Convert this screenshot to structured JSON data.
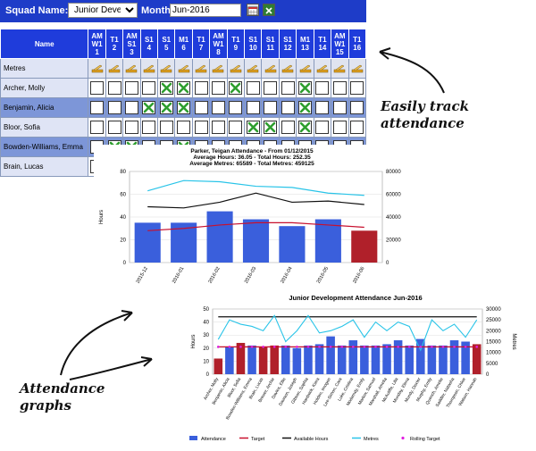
{
  "toolbar": {
    "squad_label": "Squad Name:",
    "squad_value": "Junior Development",
    "month_label": "Month:",
    "month_value": "Jun-2016",
    "calendar_icon": "calendar-icon",
    "export_icon": "excel-export-icon"
  },
  "grid": {
    "name_header": "Name",
    "sessions": [
      {
        "type": "AM",
        "week": "W1",
        "num": "1"
      },
      {
        "type": "T1",
        "week": "",
        "num": "2"
      },
      {
        "type": "AM",
        "week": "S1",
        "num": "3"
      },
      {
        "type": "S1",
        "week": "",
        "num": "4"
      },
      {
        "type": "S1",
        "week": "",
        "num": "5"
      },
      {
        "type": "M1",
        "week": "",
        "num": "6"
      },
      {
        "type": "T1",
        "week": "",
        "num": "7"
      },
      {
        "type": "AM",
        "week": "W1",
        "num": "8"
      },
      {
        "type": "T1",
        "week": "",
        "num": "9"
      },
      {
        "type": "S1",
        "week": "",
        "num": "10"
      },
      {
        "type": "S1",
        "week": "",
        "num": "11"
      },
      {
        "type": "S1",
        "week": "",
        "num": "12"
      },
      {
        "type": "M1",
        "week": "",
        "num": "13"
      },
      {
        "type": "T1",
        "week": "",
        "num": "14"
      },
      {
        "type": "AM",
        "week": "W1",
        "num": "15"
      },
      {
        "type": "T1",
        "week": "",
        "num": "16"
      }
    ],
    "metres_label": "Metres",
    "swimmers": [
      {
        "name": "Archer, Molly",
        "marks": [
          0,
          0,
          0,
          0,
          1,
          1,
          0,
          0,
          1,
          0,
          0,
          0,
          1,
          0,
          0,
          0
        ]
      },
      {
        "name": "Benjamin, Alicia",
        "marks": [
          0,
          0,
          0,
          1,
          1,
          1,
          0,
          0,
          0,
          0,
          0,
          0,
          1,
          0,
          0,
          0
        ]
      },
      {
        "name": "Bloor, Sofia",
        "marks": [
          0,
          0,
          0,
          0,
          0,
          0,
          0,
          0,
          0,
          1,
          1,
          0,
          1,
          0,
          0,
          0
        ]
      },
      {
        "name": "Bowden-Williams, Emma",
        "marks": [
          0,
          1,
          1,
          0,
          0,
          1,
          0,
          0,
          0,
          0,
          0,
          0,
          0,
          0,
          0,
          0
        ]
      },
      {
        "name": "Brain, Lucas",
        "marks": [
          0,
          0,
          0,
          0,
          0,
          0,
          0,
          0,
          0,
          0,
          0,
          0,
          0,
          0,
          0,
          0
        ]
      }
    ]
  },
  "annotations": {
    "track": "Easily track attendance",
    "graphs": "Attendance graphs"
  },
  "chart1_title": {
    "line1": "Parker, Teigan Attendance - From 01/12/2015",
    "line2": "Average Hours: 36.05 - Total Hours: 252.35",
    "line3": "Average Metres: 65589 - Total Metres: 459125"
  },
  "chart2_title": "Junior Development Attendance Jun-2016",
  "colors": {
    "header_blue": "#1f3cdb",
    "bar_blue": "#3a5fdc",
    "bar_red": "#b0202a",
    "metres_cyan": "#29c4e8",
    "target_red": "#c8102e",
    "hours_black": "#111111",
    "rolling_magenta": "#e020e0",
    "check_green": "#2e9e2e"
  },
  "chart_data": [
    {
      "type": "bar",
      "title": "Parker, Teigan Attendance - From 01/12/2015",
      "categories": [
        "2015-12",
        "2016-01",
        "2016-02",
        "2016-03",
        "2016-04",
        "2016-05",
        "2016-06"
      ],
      "series": [
        {
          "name": "",
          "values": [
            35,
            35,
            45,
            38,
            32,
            38,
            28
          ]
        },
        {
          "name": "Metres",
          "axis": "right",
          "values": [
            63000,
            72000,
            71000,
            67000,
            66000,
            61000,
            59000
          ]
        },
        {
          "name": "Available Hours",
          "values": [
            49,
            48,
            53,
            61,
            53,
            54,
            51
          ]
        }
      ],
      "red_line": [
        28,
        30,
        33,
        35,
        35,
        33,
        31
      ],
      "ylabel": "Hours",
      "y2label": "Metres",
      "ylim": [
        0,
        80
      ],
      "y2lim": [
        0,
        80000
      ],
      "yticks": [
        0,
        20,
        40,
        60,
        80
      ],
      "y2ticks": [
        "0",
        "20000",
        "40000",
        "60000",
        "80000"
      ],
      "legend": [
        "Metres",
        "Available Hours"
      ]
    },
    {
      "type": "bar",
      "title": "Junior Development Attendance Jun-2016",
      "categories": [
        "Archer, Molly",
        "Benjamin, Alicia",
        "Bloor, Sofia",
        "Bowden-Williams, Emma",
        "Brain, Lucas",
        "Brewer, Archie",
        "Davies, Ellie",
        "Dawson, Joseph",
        "Gibson, Sophia",
        "Hardwick, Kiera",
        "Holden, Imogen",
        "Lee-Simon, Cara",
        "Luke, Cristina",
        "Moderndy, Emily",
        "Marlow, Samuel",
        "Marshall, Amelia",
        "McAuliffe, Lilia",
        "Munday, Elena",
        "Mundy, Dexter",
        "Murphy, Emily",
        "Quench, Amelie",
        "Saddler, Natasha",
        "Thompson, Chloe",
        "Watson, Hannah"
      ],
      "series": [
        {
          "name": "Attendance",
          "values": [
            12,
            21,
            24,
            22,
            21,
            22,
            22,
            20,
            22,
            23,
            29,
            22,
            26,
            22,
            22,
            23,
            26,
            22,
            27,
            22,
            22,
            26,
            25,
            23
          ]
        },
        {
          "name": "Target",
          "values": [
            21,
            21,
            21,
            21,
            21,
            21,
            21,
            21,
            21,
            21,
            21,
            21,
            21,
            21,
            21,
            21,
            21,
            21,
            21,
            21,
            21,
            21,
            21,
            21
          ]
        },
        {
          "name": "Available Hours",
          "values": [
            44,
            44,
            44,
            44,
            44,
            44,
            44,
            44,
            44,
            44,
            44,
            44,
            44,
            44,
            44,
            44,
            44,
            44,
            44,
            44,
            44,
            44,
            44,
            44
          ]
        },
        {
          "name": "Metres",
          "axis": "right",
          "values": [
            16000,
            25000,
            23000,
            22000,
            20000,
            27000,
            15000,
            20000,
            27000,
            19000,
            20000,
            22000,
            25000,
            17000,
            24000,
            20000,
            24000,
            22000,
            11000,
            25000,
            20000,
            23000,
            17000,
            25000
          ]
        },
        {
          "name": "Rolling Target",
          "values": [
            21,
            21,
            21,
            21,
            21,
            21,
            21,
            21,
            21,
            21,
            21,
            21,
            21,
            21,
            21,
            21,
            21,
            21,
            21,
            21,
            21,
            21,
            21,
            21
          ]
        }
      ],
      "bar_colors": [
        "#b0202a",
        "#3a5fdc",
        "#b0202a",
        "#3a5fdc",
        "#b0202a",
        "#b0202a",
        "#3a5fdc",
        "#3a5fdc",
        "#3a5fdc",
        "#3a5fdc",
        "#3a5fdc",
        "#3a5fdc",
        "#3a5fdc",
        "#3a5fdc",
        "#3a5fdc",
        "#3a5fdc",
        "#3a5fdc",
        "#3a5fdc",
        "#3a5fdc",
        "#3a5fdc",
        "#3a5fdc",
        "#3a5fdc",
        "#3a5fdc",
        "#b0202a"
      ],
      "ylabel": "Hours",
      "y2label": "Metres",
      "ylim": [
        0,
        50
      ],
      "y2lim": [
        0,
        30000
      ],
      "yticks": [
        0,
        10,
        20,
        30,
        40,
        50
      ],
      "y2ticks": [
        "0",
        "5000",
        "10000",
        "15000",
        "20000",
        "25000",
        "30000"
      ],
      "legend": [
        "Attendance",
        "Target",
        "Available Hours",
        "Metres",
        "Rolling Target"
      ]
    }
  ]
}
